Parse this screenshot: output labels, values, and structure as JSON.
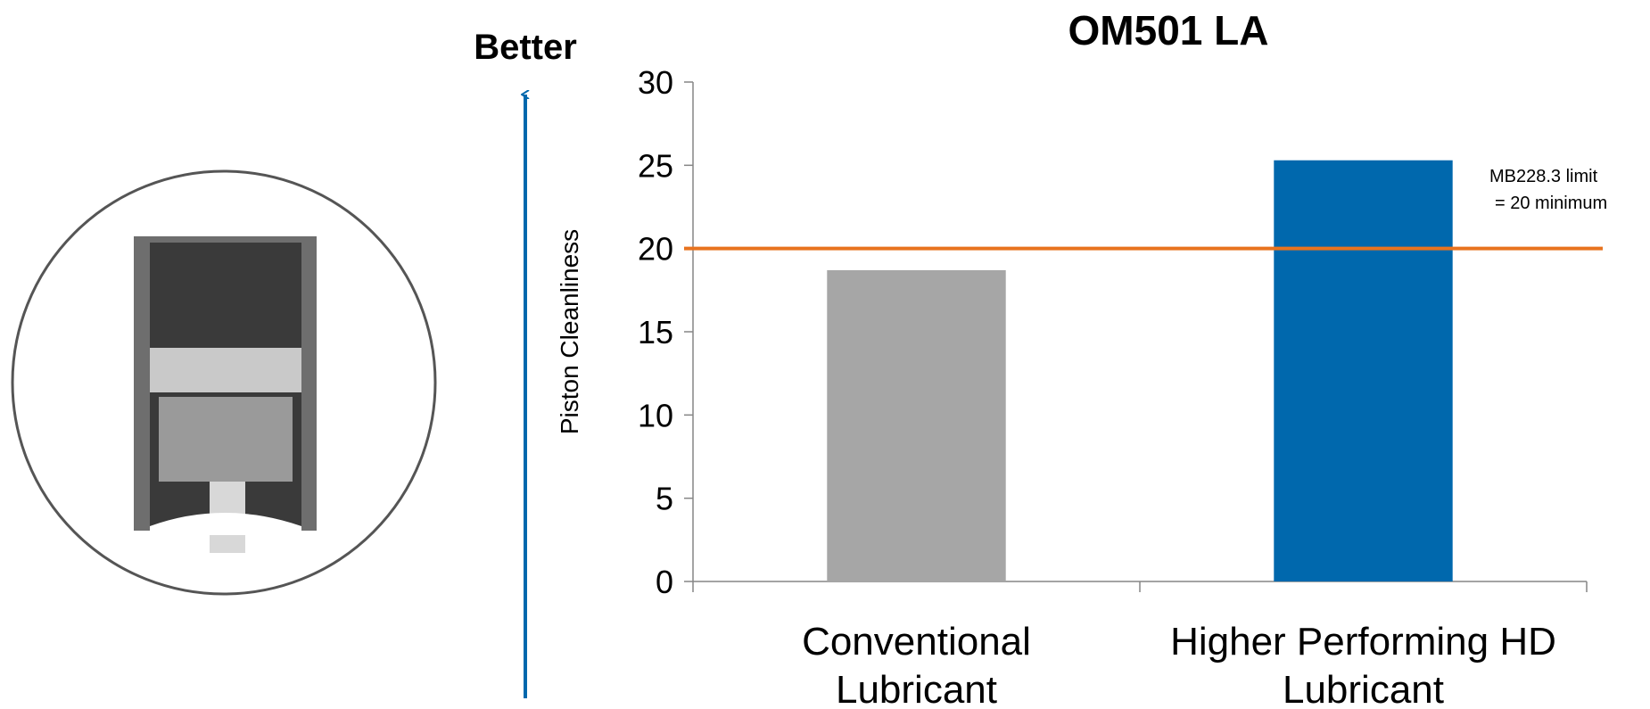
{
  "chart_data": {
    "type": "bar",
    "title": "OM501 LA",
    "y_label": "Piston Cleanliness",
    "side_label": "Better",
    "categories": [
      "Conventional Lubricant",
      "Higher Performing HD Lubricant"
    ],
    "values": [
      18.7,
      25.3
    ],
    "colors": [
      "#a6a6a6",
      "#0068ad"
    ],
    "ylim": [
      0,
      30
    ],
    "yticks": [
      0,
      5,
      10,
      15,
      20,
      25,
      30
    ],
    "grid": false,
    "reference_line": {
      "value": 20,
      "color": "#e8731f",
      "annotation": [
        "MB228.3 limit",
        "= 20 minimum"
      ]
    }
  }
}
